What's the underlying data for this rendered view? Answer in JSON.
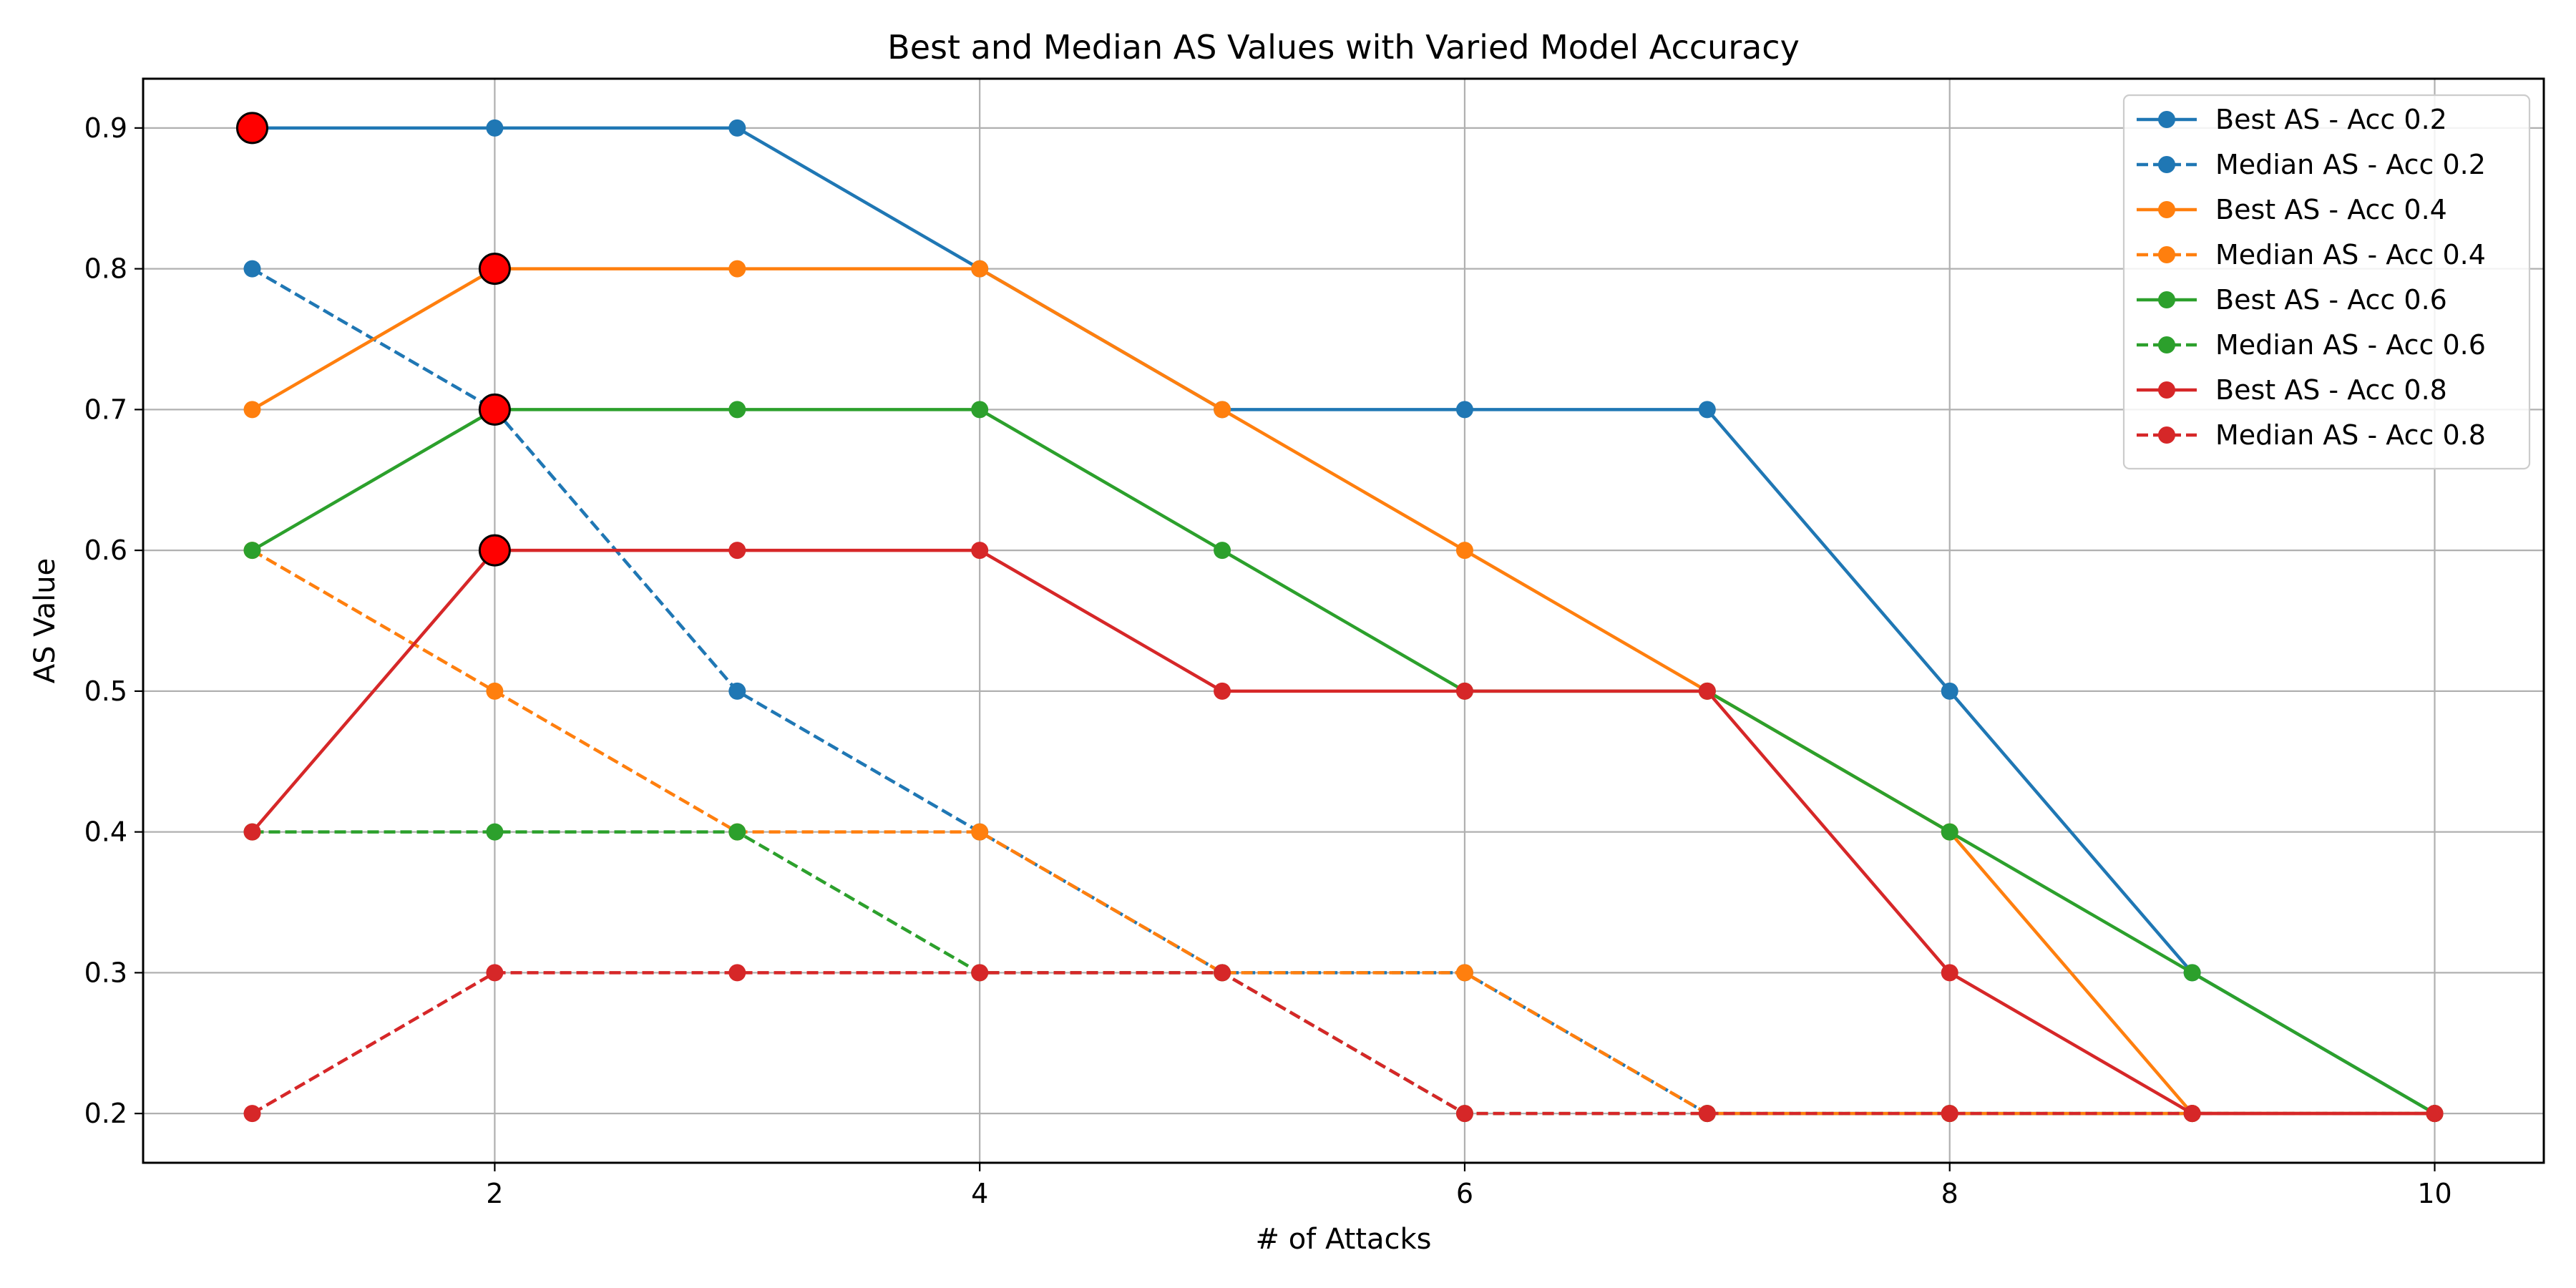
{
  "chart_data": {
    "type": "line",
    "title": "Best and Median AS Values with Varied Model Accuracy",
    "xlabel": "# of Attacks",
    "ylabel": "AS Value",
    "xlim": [
      0.55,
      10.45
    ],
    "ylim": [
      0.165,
      0.935
    ],
    "xticks": [
      2,
      4,
      6,
      8,
      10
    ],
    "yticks": [
      0.2,
      0.3,
      0.4,
      0.5,
      0.6,
      0.7,
      0.8,
      0.9
    ],
    "xtick_labels": [
      "2",
      "4",
      "6",
      "8",
      "10"
    ],
    "ytick_labels": [
      "0.2",
      "0.3",
      "0.4",
      "0.5",
      "0.6",
      "0.7",
      "0.8",
      "0.9"
    ],
    "grid": true,
    "legend_position": "top-right",
    "x": [
      1,
      2,
      3,
      4,
      5,
      6,
      7,
      8,
      9,
      10
    ],
    "series": [
      {
        "name": "Best AS - Acc 0.2",
        "color": "#1f77b4",
        "dash": "solid",
        "values": [
          0.9,
          0.9,
          0.9,
          0.8,
          0.7,
          0.7,
          0.7,
          0.5,
          0.3,
          0.2
        ]
      },
      {
        "name": "Median AS - Acc 0.2",
        "color": "#1f77b4",
        "dash": "dashed",
        "values": [
          0.8,
          0.7,
          0.5,
          0.4,
          0.3,
          0.3,
          0.2,
          0.2,
          0.2,
          0.2
        ]
      },
      {
        "name": "Best AS - Acc 0.4",
        "color": "#ff7f0e",
        "dash": "solid",
        "values": [
          0.7,
          0.8,
          0.8,
          0.8,
          0.7,
          0.6,
          0.5,
          0.4,
          0.2,
          0.2
        ]
      },
      {
        "name": "Median AS - Acc 0.4",
        "color": "#ff7f0e",
        "dash": "dashed",
        "values": [
          0.6,
          0.5,
          0.4,
          0.4,
          0.3,
          0.3,
          0.2,
          0.2,
          0.2,
          0.2
        ]
      },
      {
        "name": "Best AS - Acc 0.6",
        "color": "#2ca02c",
        "dash": "solid",
        "values": [
          0.6,
          0.7,
          0.7,
          0.7,
          0.6,
          0.5,
          0.5,
          0.4,
          0.3,
          0.2
        ]
      },
      {
        "name": "Median AS - Acc 0.6",
        "color": "#2ca02c",
        "dash": "dashed",
        "values": [
          0.4,
          0.4,
          0.4,
          0.3,
          0.3,
          0.2,
          0.2,
          0.2,
          0.2,
          0.2
        ]
      },
      {
        "name": "Best AS - Acc 0.8",
        "color": "#d62728",
        "dash": "solid",
        "values": [
          0.4,
          0.6,
          0.6,
          0.6,
          0.5,
          0.5,
          0.5,
          0.3,
          0.2,
          0.2
        ]
      },
      {
        "name": "Median AS - Acc 0.8",
        "color": "#d62728",
        "dash": "dashed",
        "values": [
          0.2,
          0.3,
          0.3,
          0.3,
          0.3,
          0.2,
          0.2,
          0.2,
          0.2,
          0.2
        ]
      }
    ],
    "highlight_points": [
      {
        "x": 1,
        "y": 0.9
      },
      {
        "x": 2,
        "y": 0.8
      },
      {
        "x": 2,
        "y": 0.7
      },
      {
        "x": 2,
        "y": 0.6
      }
    ],
    "highlight_color": "#ff0000"
  }
}
